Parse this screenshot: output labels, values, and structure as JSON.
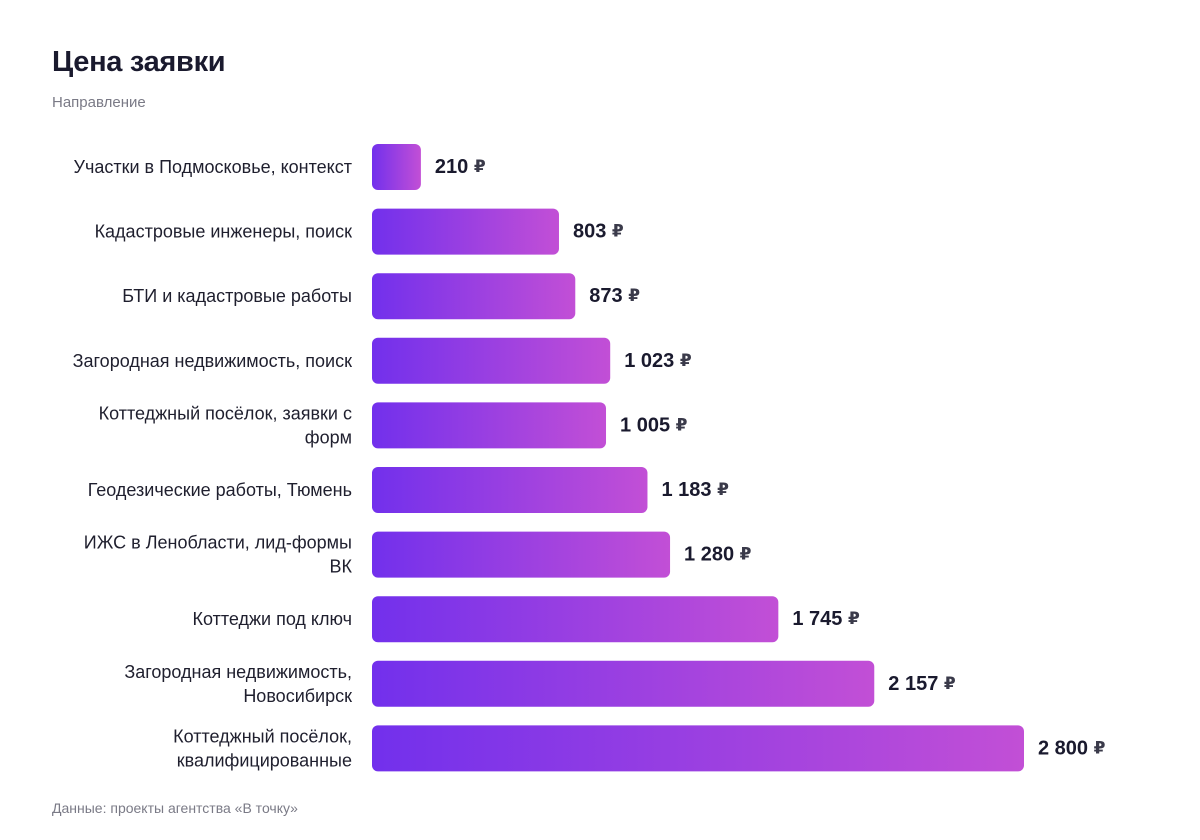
{
  "header": {
    "title": "Цена заявки",
    "subtitle": "Направление"
  },
  "footer": {
    "source": "Данные: проекты агентства «В точку»"
  },
  "colors": {
    "bar_start": "#7230ec",
    "bar_end": "#c24fd6"
  },
  "chart_data": {
    "type": "bar",
    "orientation": "horizontal",
    "title": "Цена заявки",
    "subtitle": "Направление",
    "unit": "₽",
    "categories": [
      [
        "Участки в Подмосковье, контекст"
      ],
      [
        "Кадастровые инженеры, поиск"
      ],
      [
        "БТИ и кадастровые работы"
      ],
      [
        "Загородная недвижимость, поиск"
      ],
      [
        "Коттеджный посёлок, заявки с",
        "форм"
      ],
      [
        "Геодезические работы, Тюмень"
      ],
      [
        "ИЖС в Ленобласти, лид-формы",
        "ВК"
      ],
      [
        "Коттеджи под ключ"
      ],
      [
        "Загородная недвижимость,",
        "Новосибирск"
      ],
      [
        "Коттеджный посёлок,",
        "квалифицированные"
      ]
    ],
    "values": [
      210,
      803,
      873,
      1023,
      1005,
      1183,
      1280,
      1745,
      2157,
      2800
    ],
    "value_labels": [
      "210",
      "803",
      "873",
      "1 023",
      "1 005",
      "1 183",
      "1 280",
      "1 745",
      "2 157",
      "2 800"
    ],
    "xlim": [
      0,
      2800
    ],
    "grid": false,
    "legend": "none"
  }
}
